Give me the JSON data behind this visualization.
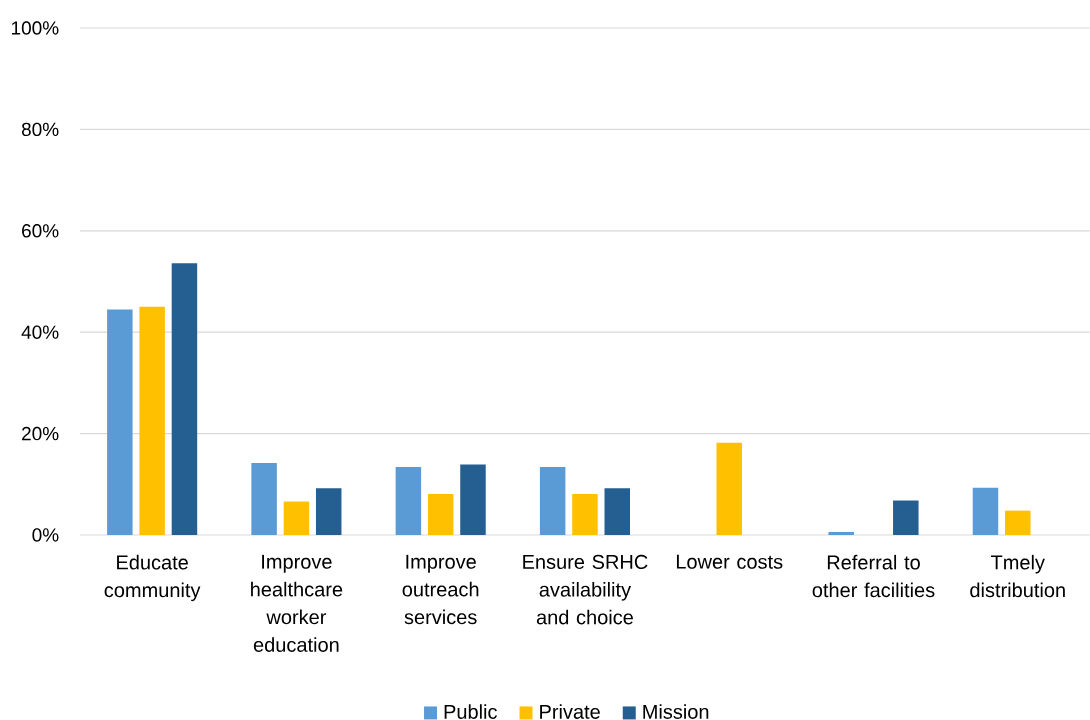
{
  "chart_data": {
    "type": "bar",
    "categories": [
      "Educate community",
      "Improve healthcare worker education",
      "Improve outreach services",
      "Ensure SRHC availability and choice",
      "Lower costs",
      "Referral to other facilities",
      "Tmely distribution"
    ],
    "series": [
      {
        "name": "Public",
        "color": "#5b9bd5",
        "values": [
          44.5,
          14.2,
          13.4,
          13.4,
          null,
          0.6,
          9.3
        ]
      },
      {
        "name": "Private",
        "color": "#ffc000",
        "values": [
          45.0,
          6.6,
          8.1,
          8.1,
          18.2,
          null,
          4.8
        ]
      },
      {
        "name": "Mission",
        "color": "#255e91",
        "values": [
          53.6,
          9.2,
          13.9,
          9.2,
          null,
          6.8,
          null
        ]
      }
    ],
    "ylim": [
      0,
      100
    ],
    "yticks": [
      {
        "value": 0,
        "label": "0%"
      },
      {
        "value": 20,
        "label": "20%"
      },
      {
        "value": 40,
        "label": "40%"
      },
      {
        "value": 60,
        "label": "60%"
      },
      {
        "value": 80,
        "label": "80%"
      },
      {
        "value": 100,
        "label": "100%"
      }
    ],
    "grid": "y",
    "legend": "bottom"
  }
}
